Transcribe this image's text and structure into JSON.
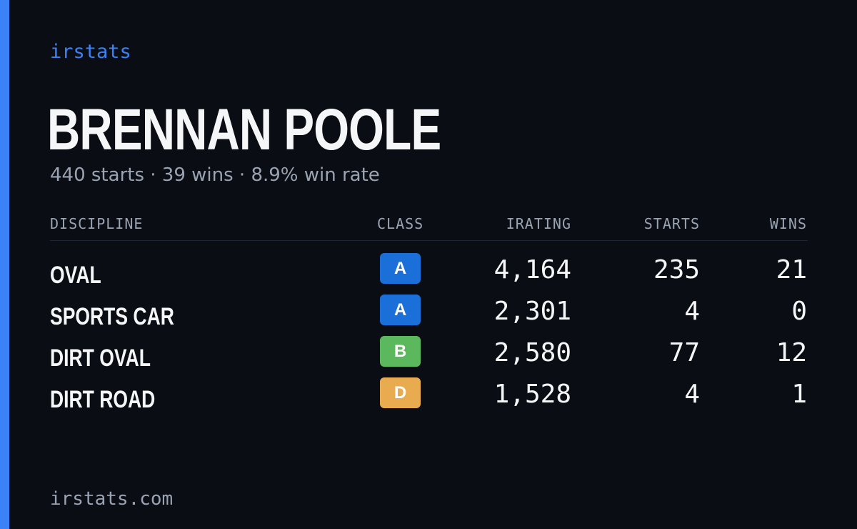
{
  "colors": {
    "accent": "#3b82f6",
    "class_a": "#1b6fd9",
    "class_b": "#5cb85c",
    "class_d": "#e8ab4f"
  },
  "brand": "irstats",
  "driver": {
    "name": "BRENNAN POOLE",
    "summary": "440 starts · 39 wins · 8.9% win rate"
  },
  "table": {
    "headers": {
      "discipline": "DISCIPLINE",
      "class": "CLASS",
      "irating": "IRATING",
      "starts": "STARTS",
      "wins": "WINS"
    },
    "rows": [
      {
        "discipline": "OVAL",
        "class": "A",
        "class_color": "#1b6fd9",
        "irating": "4,164",
        "starts": "235",
        "wins": "21"
      },
      {
        "discipline": "SPORTS CAR",
        "class": "A",
        "class_color": "#1b6fd9",
        "irating": "2,301",
        "starts": "4",
        "wins": "0"
      },
      {
        "discipline": "DIRT OVAL",
        "class": "B",
        "class_color": "#5cb85c",
        "irating": "2,580",
        "starts": "77",
        "wins": "12"
      },
      {
        "discipline": "DIRT ROAD",
        "class": "D",
        "class_color": "#e8ab4f",
        "irating": "1,528",
        "starts": "4",
        "wins": "1"
      }
    ]
  },
  "footer": "irstats.com"
}
